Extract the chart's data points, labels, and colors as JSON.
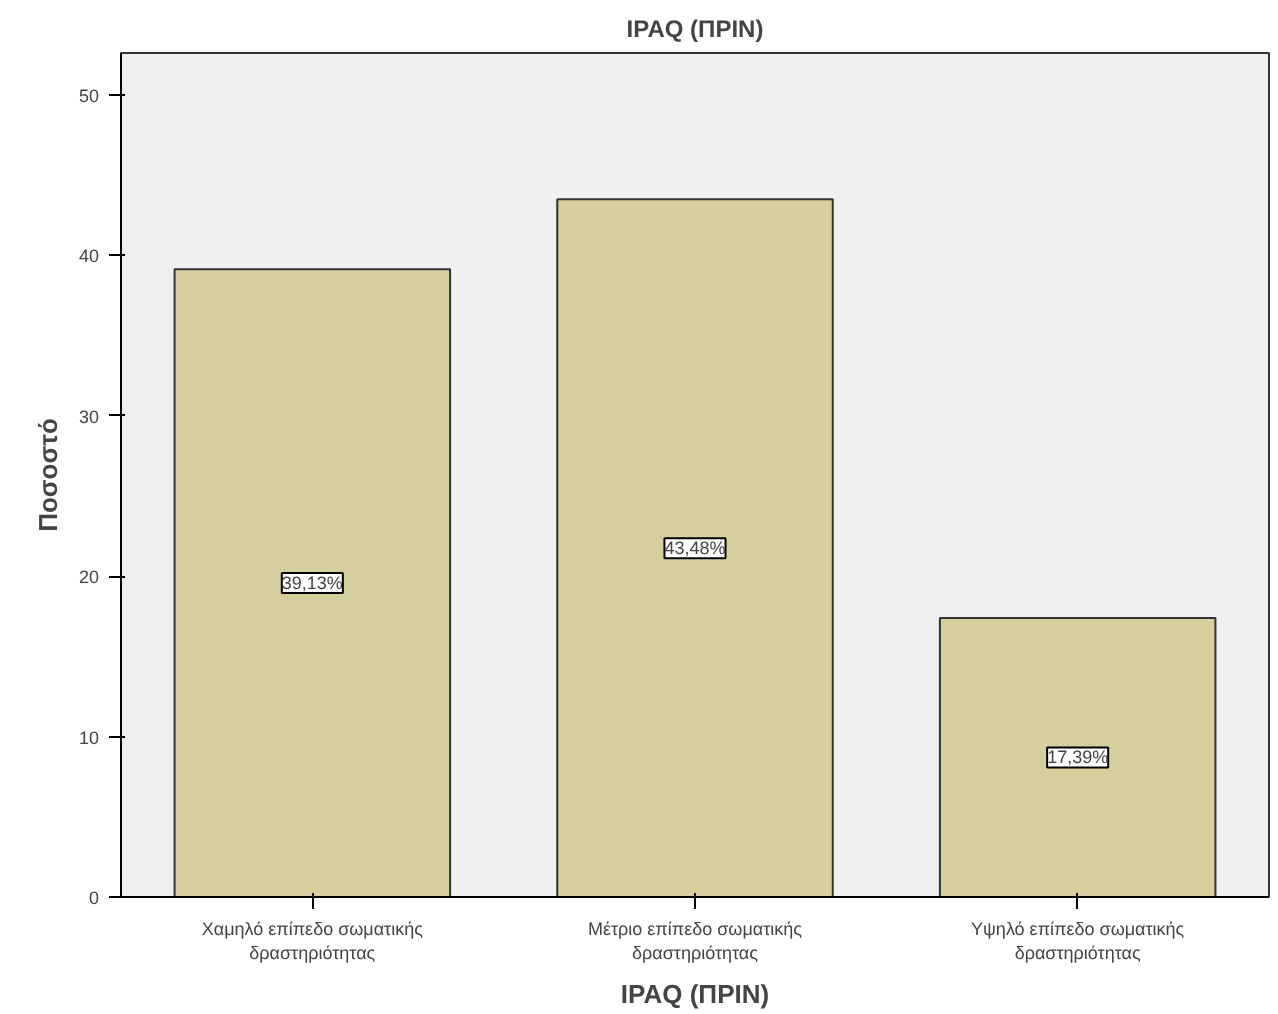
{
  "chart_data": {
    "type": "bar",
    "title": "IPAQ (ΠΡΙΝ)",
    "xlabel": "IPAQ (ΠΡΙΝ)",
    "ylabel": "Ποσοστό",
    "categories": [
      "Χαμηλό επίπεδο σωματικής δραστηριότητας",
      "Μέτριο επίπεδο σωματικής δραστηριότητας",
      "Υψηλό επίπεδο σωματικής δραστηριότητας"
    ],
    "values": [
      39.13,
      43.48,
      17.39
    ],
    "color": "#d4cf9c",
    "value_labels": [
      "39,13%",
      "43,48%",
      "17,39%"
    ],
    "ylim": [
      0,
      52.6
    ],
    "yticks": [
      0,
      10,
      20,
      30,
      40,
      50
    ],
    "grid": false
  }
}
